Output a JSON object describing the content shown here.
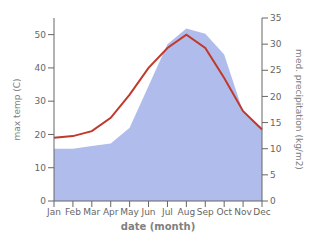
{
  "chart_data": {
    "type": "line",
    "xlabel": "date (month)",
    "ylabel": "max temp (C)",
    "y2label": "med. precipitation (kg/m2)",
    "categories": [
      "Jan",
      "Feb",
      "Mar",
      "Apr",
      "May",
      "Jun",
      "Jul",
      "Aug",
      "Sep",
      "Oct",
      "Nov",
      "Dec"
    ],
    "series": [
      {
        "type": "area",
        "color": "#b0bcec",
        "axis": "y2",
        "values": [
          10.0,
          10.0,
          10.5,
          11.0,
          14.0,
          22.0,
          30.0,
          33.0,
          32.0,
          28.0,
          17.0,
          14.0
        ]
      },
      {
        "type": "line",
        "color": "#c0392b",
        "values": [
          19.0,
          19.5,
          21.0,
          25.0,
          32.0,
          40.0,
          46.0,
          50.0,
          46.0,
          37.0,
          27.0,
          21.5
        ]
      }
    ],
    "ylim": [
      0,
      55
    ],
    "yticks": [
      0,
      10,
      20,
      30,
      40,
      50
    ],
    "y2lim": [
      0,
      35
    ],
    "y2ticks": [
      0,
      5,
      10,
      15,
      20,
      25,
      30,
      35
    ],
    "grid": false
  }
}
